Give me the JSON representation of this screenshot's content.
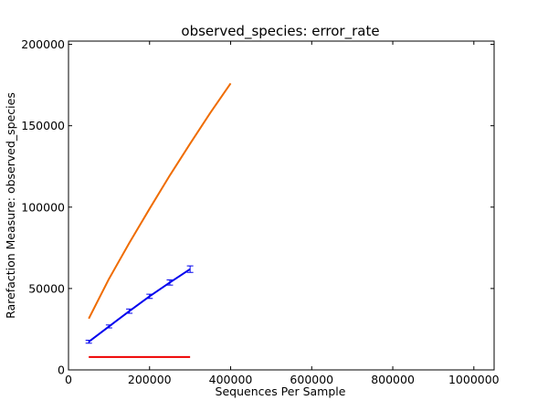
{
  "chart_data": {
    "type": "line",
    "title": "observed_species: error_rate",
    "xlabel": "Sequences Per Sample",
    "ylabel": "Rarefaction Measure: observed_species",
    "xlim": [
      0,
      1050000
    ],
    "ylim": [
      0,
      202000
    ],
    "xticks": [
      0,
      200000,
      400000,
      600000,
      800000,
      1000000
    ],
    "yticks": [
      0,
      50000,
      100000,
      150000,
      200000
    ],
    "grid": false,
    "legend": "none",
    "series": [
      {
        "color": "#ef6c00",
        "x": [
          50000,
          100000,
          150000,
          200000,
          250000,
          300000,
          350000,
          400000
        ],
        "y": [
          31500,
          56000,
          78000,
          99000,
          119500,
          139000,
          158000,
          176000
        ],
        "error": null
      },
      {
        "color": "#0000ee",
        "x": [
          50000,
          100000,
          150000,
          200000,
          250000,
          300000
        ],
        "y": [
          17300,
          26700,
          36100,
          45200,
          53700,
          61900
        ],
        "error": [
          900,
          900,
          1300,
          1300,
          1600,
          2000
        ]
      },
      {
        "color": "#ee0000",
        "x": [
          50000,
          300000
        ],
        "y": [
          7900,
          7900
        ],
        "error": null
      }
    ]
  }
}
